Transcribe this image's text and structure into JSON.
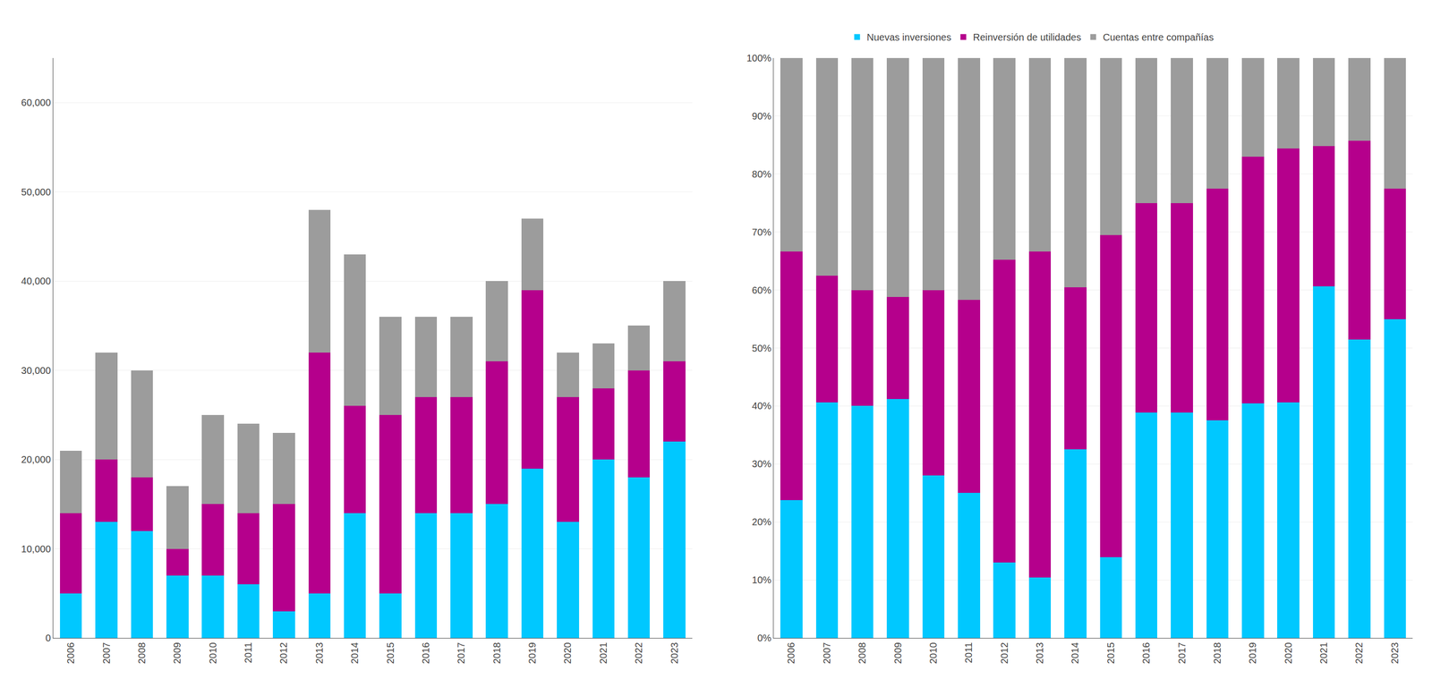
{
  "chart_data": [
    {
      "type": "bar",
      "stacked": true,
      "grid": true,
      "legend": "top",
      "categories": [
        "2006",
        "2007",
        "2008",
        "2009",
        "2010",
        "2011",
        "2012",
        "2013",
        "2014",
        "2015",
        "2016",
        "2017",
        "2018",
        "2019",
        "2020",
        "2021",
        "2022",
        "2023"
      ],
      "ylim": [
        0,
        65000
      ],
      "yticks": [
        0,
        {
          "value": 10000,
          "label": "10,000"
        },
        {
          "value": 20000,
          "label": "20,000"
        },
        {
          "value": 30000,
          "label": "30,000"
        },
        {
          "value": 40000,
          "label": "40,000"
        },
        {
          "value": 50000,
          "label": "50,000"
        },
        {
          "value": 60000,
          "label": "60,000"
        }
      ],
      "series": [
        {
          "name": "Nuevas inversiones",
          "color": "#00C8FF",
          "values": [
            5000,
            13000,
            12000,
            7000,
            7000,
            6000,
            3000,
            5000,
            14000,
            5000,
            14000,
            14000,
            15000,
            19000,
            13000,
            20000,
            18000,
            22000
          ]
        },
        {
          "name": "Reinversión de utilidades",
          "color": "#B5008C",
          "values": [
            9000,
            7000,
            6000,
            3000,
            8000,
            8000,
            12000,
            27000,
            12000,
            20000,
            13000,
            13000,
            16000,
            20000,
            14000,
            8000,
            12000,
            9000
          ]
        },
        {
          "name": "Cuentas entre compañías",
          "color": "#9C9C9C",
          "values": [
            7000,
            12000,
            12000,
            7000,
            10000,
            10000,
            8000,
            16000,
            17000,
            11000,
            9000,
            9000,
            9000,
            8000,
            5000,
            5000,
            5000,
            9000
          ]
        }
      ]
    },
    {
      "type": "bar",
      "stacked": true,
      "grid": true,
      "categories": [
        "2006",
        "2007",
        "2008",
        "2009",
        "2010",
        "2011",
        "2012",
        "2013",
        "2014",
        "2015",
        "2016",
        "2017",
        "2018",
        "2019",
        "2020",
        "2021",
        "2022",
        "2023"
      ],
      "ylim": [
        0,
        100
      ],
      "yticks": [
        {
          "value": 0,
          "label": "0%"
        },
        {
          "value": 10,
          "label": "10%"
        },
        {
          "value": 20,
          "label": "20%"
        },
        {
          "value": 30,
          "label": "30%"
        },
        {
          "value": 40,
          "label": "40%"
        },
        {
          "value": 50,
          "label": "50%"
        },
        {
          "value": 60,
          "label": "60%"
        },
        {
          "value": 70,
          "label": "70%"
        },
        {
          "value": 80,
          "label": "80%"
        },
        {
          "value": 90,
          "label": "90%"
        },
        {
          "value": 100,
          "label": "100%"
        }
      ],
      "series": [
        {
          "name": "Nuevas inversiones",
          "color": "#00C8FF",
          "values": [
            23.8095238095,
            40.625,
            40,
            41.1764705882,
            28,
            25,
            13.0434782609,
            10.4166666667,
            32.5581395349,
            13.8888888889,
            38.8888888889,
            38.8888888889,
            37.5,
            40.4255319149,
            40.625,
            60.6060606061,
            51.4285714286,
            55
          ]
        },
        {
          "name": "Reinversión de utilidades",
          "color": "#B5008C",
          "values": [
            42.8571428571,
            21.875,
            20,
            17.6470588235,
            32,
            33.3333333333,
            52.1739130435,
            56.25,
            27.9069767442,
            55.5555555556,
            36.1111111111,
            36.1111111111,
            40,
            42.5531914894,
            43.75,
            24.2424242424,
            34.2857142857,
            22.5
          ]
        },
        {
          "name": "Cuentas entre compañías",
          "color": "#9C9C9C",
          "values": [
            33.3333333333,
            37.5,
            40,
            41.1764705882,
            40,
            41.6666666667,
            34.7826086957,
            33.3333333333,
            39.5348837209,
            30.5555555556,
            25,
            25,
            22.5,
            17.0212765957,
            15.625,
            15.1515151515,
            14.2857142857,
            22.5
          ]
        }
      ]
    }
  ]
}
